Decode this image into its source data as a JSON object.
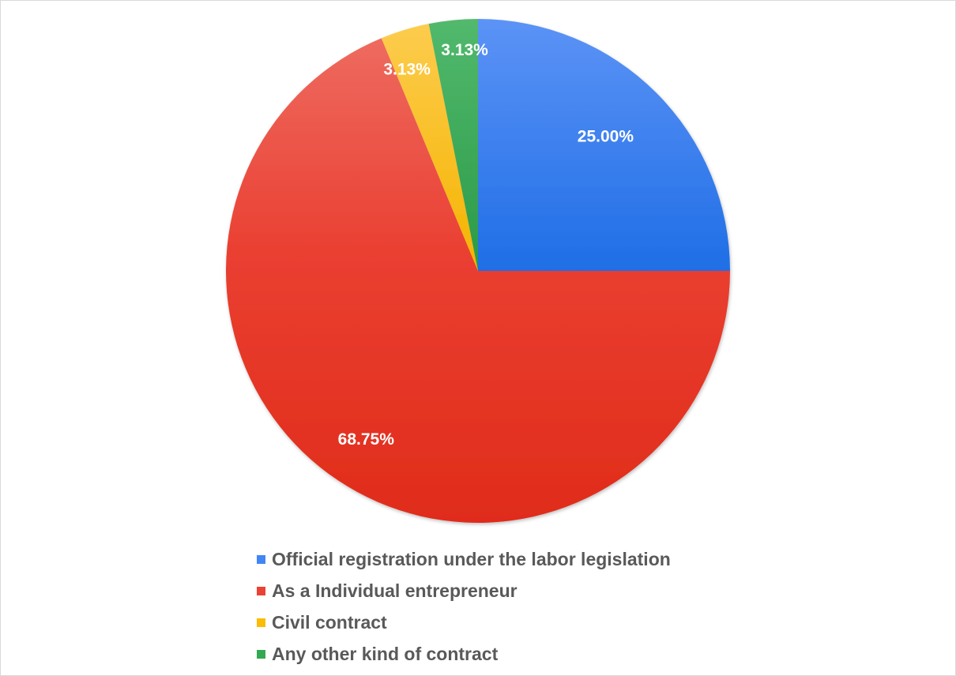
{
  "chart_data": {
    "type": "pie",
    "slices": [
      {
        "name": "Official registration under the labor legislation",
        "value": 25.0,
        "label": "25.00%",
        "color": "#4285f4"
      },
      {
        "name": "As a Individual entrepreneur",
        "value": 68.75,
        "label": "68.75%",
        "color": "#ea4335"
      },
      {
        "name": "Civil contract",
        "value": 3.13,
        "label": "3.13%",
        "color": "#fbbc04"
      },
      {
        "name": "Any other kind of contract",
        "value": 3.13,
        "label": "3.13%",
        "color": "#34a853"
      }
    ],
    "legend_position": "bottom"
  }
}
